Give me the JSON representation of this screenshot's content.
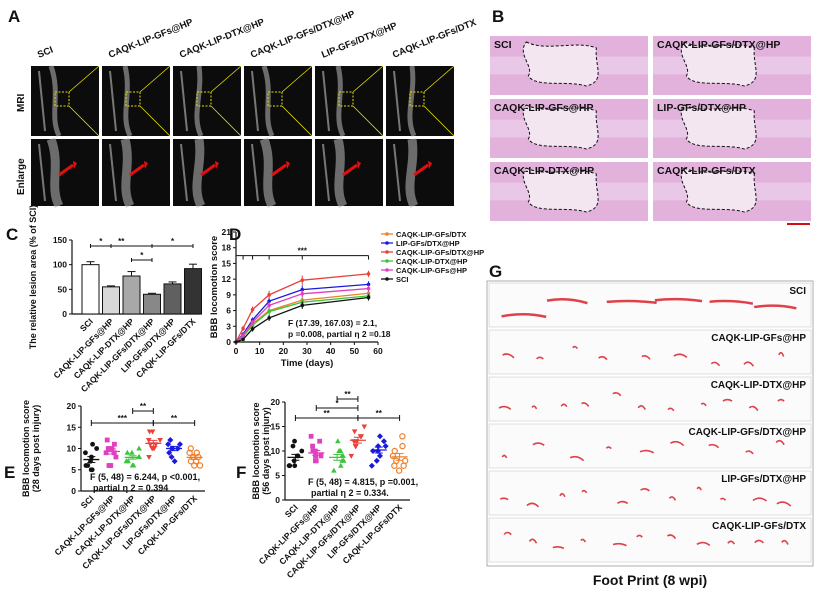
{
  "panel_labels": {
    "A": "A",
    "B": "B",
    "C": "C",
    "D": "D",
    "E": "E",
    "F": "F",
    "G": "G"
  },
  "panel_a": {
    "columns": [
      "SCI",
      "CAQK-LIP-GFs@HP",
      "CAQK-LIP-DTX@HP",
      "CAQK-LIP-GFs/DTX@HP",
      "LIP-GFs/DTX@HP",
      "CAQK-LIP-GFs/DTX"
    ],
    "rows": [
      "MRI",
      "Enlarge"
    ],
    "box_color": "#e8e000",
    "arrow_color": "#e01010"
  },
  "panel_b": {
    "tiles": [
      "SCI",
      "CAQK-LIP-GFs/DTX@HP",
      "CAQK-LIP-GFs@HP",
      "LIP-GFs/DTX@HP",
      "CAQK-LIP-DTX@HP",
      "CAQK-LIP-GFs/DTX"
    ],
    "tissue_color": "#e2b2dc",
    "scale_bar_color": "#d01010"
  },
  "chart_data": [
    {
      "id": "C",
      "type": "bar",
      "ylabel": "The relative lesion area (% of SCI)",
      "ylim": [
        0,
        150
      ],
      "yticks": [
        0,
        50,
        100,
        150
      ],
      "categories": [
        "SCI",
        "CAQK-LIP-GFs@HP",
        "CAQK-LIP-DTX@HP",
        "CAQK-LIP-GFs/DTX@HP",
        "LIP-GFs/DTX@HP",
        "CAQK-LIP-GFs/DTX"
      ],
      "values": [
        100,
        55,
        77,
        40,
        61,
        92
      ],
      "errors": [
        6,
        2,
        9,
        2,
        4,
        9
      ],
      "colors": [
        "#ffffff",
        "#d8d8d8",
        "#a8a8a8",
        "#888888",
        "#606060",
        "#333333"
      ],
      "significance": [
        {
          "from": 0,
          "to": 1,
          "label": "*",
          "level": 1
        },
        {
          "from": 0,
          "to": 3,
          "label": "**",
          "level": 2
        },
        {
          "from": 3,
          "to": 5,
          "label": "*",
          "level": 2
        },
        {
          "from": 2,
          "to": 3,
          "label": "*",
          "level": 0
        }
      ]
    },
    {
      "id": "D",
      "type": "line",
      "xlabel": "Time (days)",
      "ylabel": "BBB locomotion score",
      "xlim": [
        0,
        60
      ],
      "ylim": [
        0,
        21
      ],
      "xticks": [
        0,
        10,
        20,
        30,
        40,
        50,
        60
      ],
      "yticks": [
        0,
        3,
        6,
        9,
        12,
        15,
        18,
        21
      ],
      "x": [
        0,
        3,
        7,
        14,
        28,
        56
      ],
      "series": [
        {
          "name": "CAQK-LIP-GFs/DTX",
          "color": "#f07f2a",
          "values": [
            0,
            1.2,
            3.5,
            6.0,
            8.0,
            9.3
          ],
          "err": [
            0,
            0.3,
            0.5,
            0.6,
            0.7,
            0.6
          ]
        },
        {
          "name": "LIP-GFs/DTX@HP",
          "color": "#1a1adf",
          "values": [
            0,
            1.5,
            4.2,
            7.8,
            10.0,
            11.0
          ],
          "err": [
            0,
            0.3,
            0.5,
            0.7,
            0.8,
            0.6
          ]
        },
        {
          "name": "CAQK-LIP-GFs/DTX@HP",
          "color": "#e8423a",
          "values": [
            0,
            2.6,
            6.2,
            9.0,
            11.8,
            13.0
          ],
          "err": [
            0,
            0.5,
            0.6,
            0.8,
            0.9,
            0.6
          ]
        },
        {
          "name": "CAQK-LIP-DTX@HP",
          "color": "#3cc43c",
          "values": [
            0,
            1.0,
            3.2,
            5.8,
            7.6,
            8.8
          ],
          "err": [
            0,
            0.3,
            0.5,
            0.6,
            0.7,
            0.6
          ]
        },
        {
          "name": "CAQK-LIP-GFs@HP",
          "color": "#e040c0",
          "values": [
            0,
            1.3,
            3.8,
            7.0,
            9.2,
            10.2
          ],
          "err": [
            0,
            0.3,
            0.5,
            0.6,
            0.7,
            0.6
          ]
        },
        {
          "name": "SCI",
          "color": "#111111",
          "values": [
            0,
            0.5,
            2.5,
            4.6,
            7.0,
            8.5
          ],
          "err": [
            0,
            0.3,
            0.5,
            0.6,
            0.7,
            0.6
          ]
        }
      ],
      "significance_label": "***",
      "annotation": [
        "F (17.39, 167.03) = 2.1,",
        "p =0.008, partial η 2 =0.18"
      ]
    },
    {
      "id": "E",
      "type": "scatter",
      "ylabel": [
        "BBB locomotion score",
        "(28 days post injury)"
      ],
      "ylim": [
        0,
        20
      ],
      "yticks": [
        0,
        5,
        10,
        15,
        20
      ],
      "categories": [
        "SCI",
        "CAQK-LIP-GFs@HP",
        "CAQK-LIP-DTX@HP",
        "CAQK-LIP-GFs/DTX@HP",
        "LIP-GFs/DTX@HP",
        "CAQK-LIP-GFs/DTX"
      ],
      "colors": [
        "#111111",
        "#e040c0",
        "#3cc43c",
        "#e8423a",
        "#1a1adf",
        "#f07f2a"
      ],
      "markers": [
        "circle",
        "square",
        "triangle",
        "triangle-down",
        "diamond",
        "circle-open"
      ],
      "means": [
        7.4,
        9.3,
        7.9,
        11.2,
        10.0,
        7.9
      ],
      "sem": [
        0.7,
        0.6,
        0.4,
        0.7,
        0.5,
        0.5
      ],
      "points": [
        [
          5,
          5,
          6,
          6,
          7,
          8,
          9,
          10,
          11
        ],
        [
          6,
          6,
          8,
          9,
          9,
          10,
          10,
          11,
          12
        ],
        [
          6,
          6,
          7,
          7,
          8,
          8,
          9,
          9,
          10
        ],
        [
          8,
          10,
          10,
          11,
          11,
          12,
          12,
          14,
          14
        ],
        [
          7,
          8,
          9,
          10,
          10,
          10,
          11,
          11,
          12
        ],
        [
          6,
          6,
          7,
          7,
          8,
          8,
          9,
          9,
          10
        ]
      ],
      "significance": [
        {
          "from": 0,
          "to": 3,
          "label": "***",
          "level": 0
        },
        {
          "from": 2,
          "to": 3,
          "label": "**",
          "level": 1
        },
        {
          "from": 3,
          "to": 5,
          "label": "**",
          "level": 0
        }
      ],
      "annotation": [
        "F (5, 48) = 6.244, p <0.001,",
        "partial η 2 = 0.394"
      ]
    },
    {
      "id": "F",
      "type": "scatter",
      "ylabel": [
        "BBB locomotion score",
        "(56 days post injury)"
      ],
      "ylim": [
        0,
        20
      ],
      "yticks": [
        0,
        5,
        10,
        15,
        20
      ],
      "categories": [
        "SCI",
        "CAQK-LIP-GFs@HP",
        "CAQK-LIP-DTX@HP",
        "CAQK-LIP-GFs/DTX@HP",
        "LIP-GFs/DTX@HP",
        "CAQK-LIP-GFs/DTX"
      ],
      "colors": [
        "#111111",
        "#e040c0",
        "#3cc43c",
        "#e8423a",
        "#1a1adf",
        "#f07f2a"
      ],
      "markers": [
        "circle",
        "square",
        "triangle",
        "triangle-down",
        "diamond",
        "circle-open"
      ],
      "means": [
        8.7,
        9.6,
        8.7,
        12.2,
        10.2,
        8.8
      ],
      "sem": [
        0.6,
        0.5,
        0.6,
        0.6,
        0.6,
        0.7
      ],
      "points": [
        [
          7,
          7,
          7,
          8,
          9,
          9,
          10,
          11,
          12
        ],
        [
          8,
          8,
          9,
          9,
          10,
          10,
          11,
          12,
          13
        ],
        [
          6,
          7,
          8,
          8,
          9,
          9,
          10,
          10,
          12
        ],
        [
          9,
          11,
          11,
          12,
          12,
          13,
          13,
          14,
          15
        ],
        [
          7,
          8,
          9,
          10,
          10,
          11,
          11,
          12,
          13
        ],
        [
          6,
          7,
          7,
          8,
          8,
          9,
          10,
          11,
          13
        ]
      ],
      "significance": [
        {
          "from": 0,
          "to": 3,
          "label": "**",
          "level": 0
        },
        {
          "from": 1,
          "to": 3,
          "label": "*",
          "level": 1
        },
        {
          "from": 2,
          "to": 3,
          "label": "**",
          "level": 2
        },
        {
          "from": 3,
          "to": 5,
          "label": "**",
          "level": 0
        }
      ],
      "annotation": [
        "F (5, 48) = 4.815, p =0.001,",
        "partial η 2 = 0.334."
      ]
    }
  ],
  "panel_g": {
    "strips": [
      "SCI",
      "CAQK-LIP-GFs@HP",
      "CAQK-LIP-DTX@HP",
      "CAQK-LIP-GFs/DTX@HP",
      "LIP-GFs/DTX@HP",
      "CAQK-LIP-GFs/DTX"
    ],
    "caption": "Foot Print (8 wpi)",
    "ink_color": "#d8202a"
  }
}
